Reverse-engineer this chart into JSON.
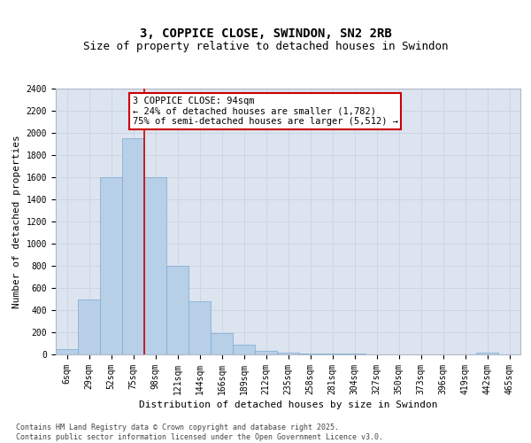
{
  "title1": "3, COPPICE CLOSE, SWINDON, SN2 2RB",
  "title2": "Size of property relative to detached houses in Swindon",
  "xlabel": "Distribution of detached houses by size in Swindon",
  "ylabel": "Number of detached properties",
  "categories": [
    "6sqm",
    "29sqm",
    "52sqm",
    "75sqm",
    "98sqm",
    "121sqm",
    "144sqm",
    "166sqm",
    "189sqm",
    "212sqm",
    "235sqm",
    "258sqm",
    "281sqm",
    "304sqm",
    "327sqm",
    "350sqm",
    "373sqm",
    "396sqm",
    "419sqm",
    "442sqm",
    "465sqm"
  ],
  "values": [
    50,
    500,
    1600,
    1950,
    1600,
    800,
    480,
    195,
    90,
    35,
    20,
    12,
    8,
    5,
    3,
    2,
    1,
    0,
    0,
    20,
    0
  ],
  "bar_color": "#b8cfe8",
  "bar_edge_color": "#7aaad0",
  "vline_x_index": 3,
  "vline_color": "#cc0000",
  "annotation_text": "3 COPPICE CLOSE: 94sqm\n← 24% of detached houses are smaller (1,782)\n75% of semi-detached houses are larger (5,512) →",
  "annotation_box_color": "#cc0000",
  "annotation_box_fill": "#ffffff",
  "ylim": [
    0,
    2400
  ],
  "yticks": [
    0,
    200,
    400,
    600,
    800,
    1000,
    1200,
    1400,
    1600,
    1800,
    2000,
    2200,
    2400
  ],
  "grid_color": "#cdd5e3",
  "bg_color": "#dce4f0",
  "footnote": "Contains HM Land Registry data © Crown copyright and database right 2025.\nContains public sector information licensed under the Open Government Licence v3.0.",
  "title1_fontsize": 10,
  "title2_fontsize": 9,
  "xlabel_fontsize": 8,
  "ylabel_fontsize": 8,
  "tick_fontsize": 7,
  "annotation_fontsize": 7.5,
  "footnote_fontsize": 6
}
